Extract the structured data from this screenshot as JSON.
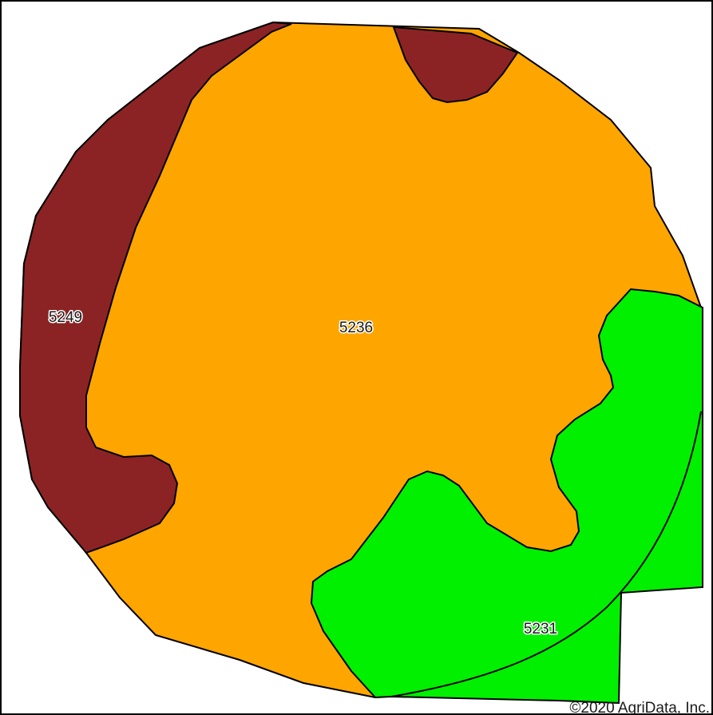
{
  "map": {
    "zones": [
      {
        "id": "5249",
        "label": "5249",
        "color": "#8b2324"
      },
      {
        "id": "5236",
        "label": "5236",
        "color": "#ffa500"
      },
      {
        "id": "5231",
        "label": "5231",
        "color": "#00f000"
      }
    ],
    "boundary_color": "#000000",
    "copyright": "©2020 AgriData, Inc."
  }
}
